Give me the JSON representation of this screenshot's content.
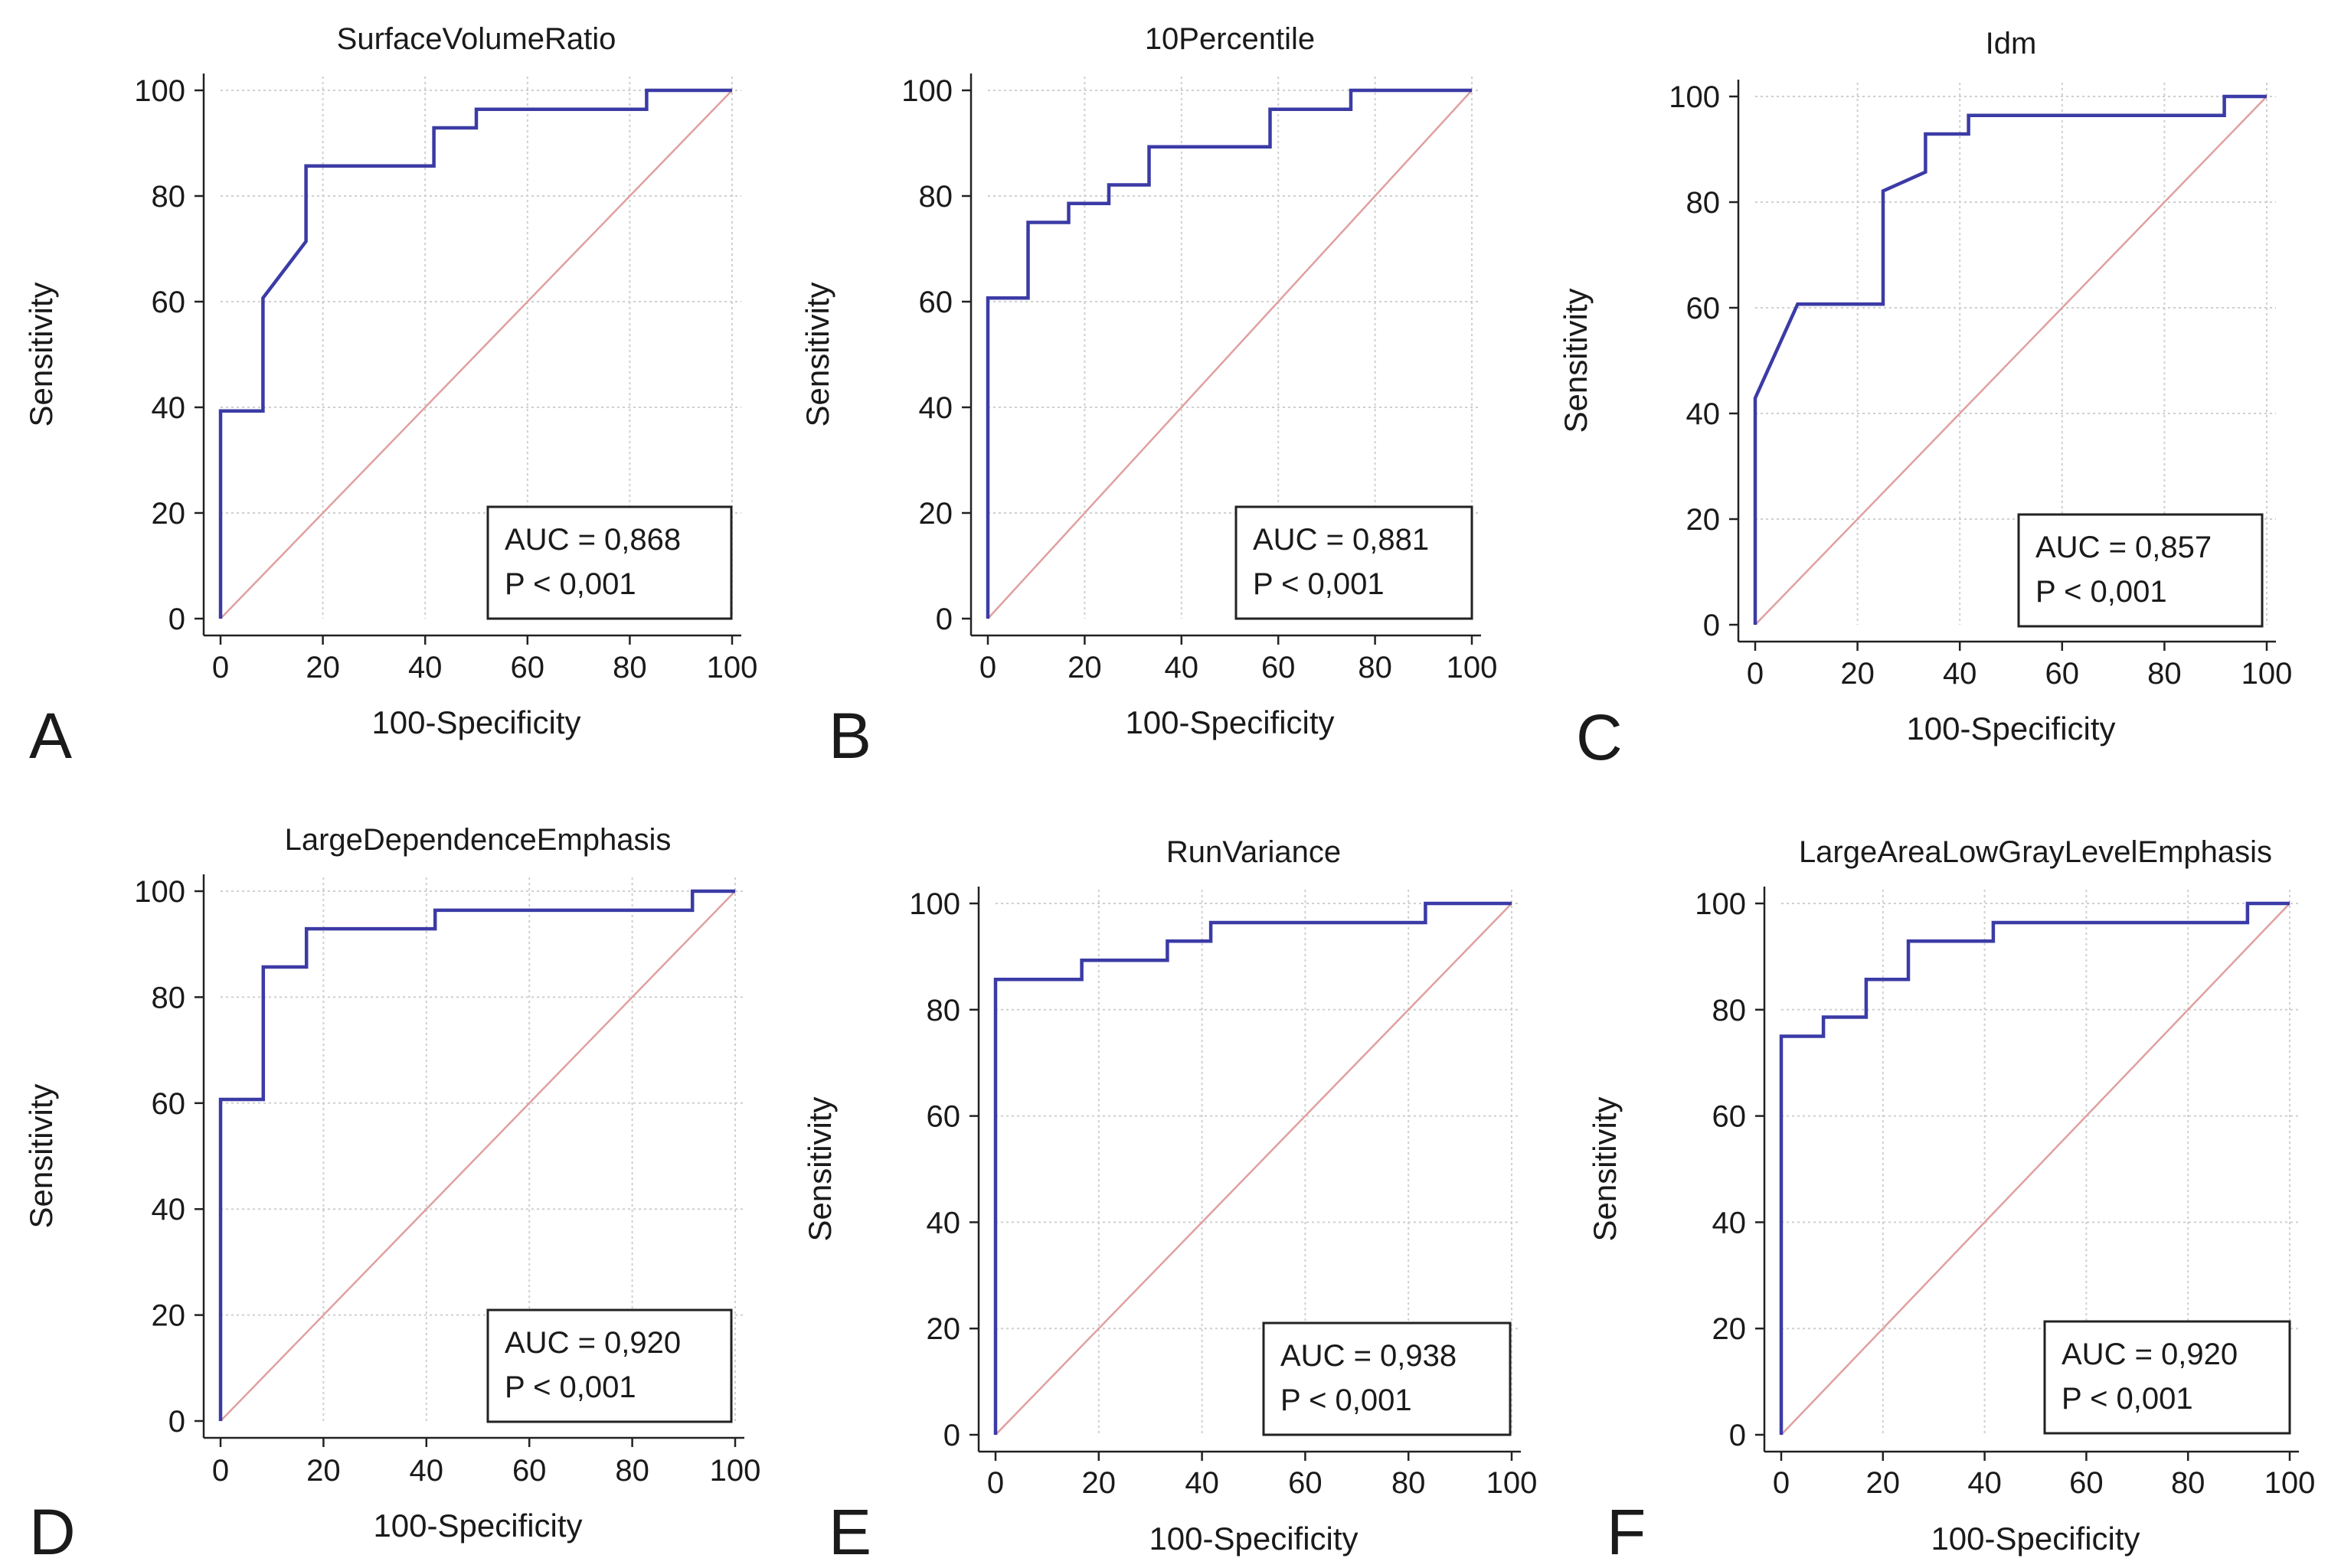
{
  "chart_data": [
    {
      "panel": "A",
      "type": "line",
      "title": "SurfaceVolumeRatio",
      "xlabel": "100-Specificity",
      "ylabel": "Sensitivity",
      "xlim": [
        0,
        100
      ],
      "ylim": [
        0,
        100
      ],
      "xticks": [
        "0",
        "20",
        "40",
        "60",
        "80",
        "100"
      ],
      "yticks": [
        "0",
        "20",
        "40",
        "60",
        "80",
        "100"
      ],
      "grid": true,
      "auc_text": "AUC = 0,868",
      "p_text": "P < 0,001",
      "legend_position": "bottom-right",
      "series": [
        {
          "name": "ROC",
          "x": [
            0,
            0,
            8.3,
            8.3,
            16.7,
            16.7,
            41.7,
            41.7,
            50,
            50,
            83.3,
            83.3,
            100
          ],
          "y": [
            0,
            39.3,
            39.3,
            60.7,
            71.4,
            85.7,
            85.7,
            92.9,
            92.9,
            96.4,
            96.4,
            100,
            100
          ]
        },
        {
          "name": "Reference",
          "x": [
            0,
            100
          ],
          "y": [
            0,
            100
          ]
        }
      ]
    },
    {
      "panel": "B",
      "type": "line",
      "title": "10Percentile",
      "xlabel": "100-Specificity",
      "ylabel": "Sensitivity",
      "xlim": [
        0,
        100
      ],
      "ylim": [
        0,
        100
      ],
      "xticks": [
        "0",
        "20",
        "40",
        "60",
        "80",
        "100"
      ],
      "yticks": [
        "0",
        "20",
        "40",
        "60",
        "80",
        "100"
      ],
      "grid": true,
      "auc_text": "AUC = 0,881",
      "p_text": "P < 0,001",
      "legend_position": "bottom-right",
      "series": [
        {
          "name": "ROC",
          "x": [
            0,
            0,
            8.3,
            8.3,
            16.7,
            16.7,
            25,
            25,
            33.3,
            33.3,
            58.3,
            58.3,
            75,
            75,
            100
          ],
          "y": [
            0,
            60.7,
            60.7,
            75,
            75,
            78.6,
            78.6,
            82.1,
            82.1,
            89.3,
            89.3,
            96.4,
            96.4,
            100,
            100
          ]
        },
        {
          "name": "Reference",
          "x": [
            0,
            100
          ],
          "y": [
            0,
            100
          ]
        }
      ]
    },
    {
      "panel": "C",
      "type": "line",
      "title": "Idm",
      "xlabel": "100-Specificity",
      "ylabel": "Sensitivity",
      "xlim": [
        0,
        100
      ],
      "ylim": [
        0,
        100
      ],
      "xticks": [
        "0",
        "20",
        "40",
        "60",
        "80",
        "100"
      ],
      "yticks": [
        "0",
        "20",
        "40",
        "60",
        "80",
        "100"
      ],
      "grid": true,
      "auc_text": "AUC = 0,857",
      "p_text": "P < 0,001",
      "legend_position": "bottom-right",
      "series": [
        {
          "name": "ROC",
          "x": [
            0,
            0,
            8.3,
            25,
            25,
            33.3,
            33.3,
            41.7,
            41.7,
            91.7,
            91.7,
            100
          ],
          "y": [
            0,
            42.9,
            60.7,
            60.7,
            82.1,
            85.7,
            92.9,
            92.9,
            96.4,
            96.4,
            100,
            100
          ]
        },
        {
          "name": "Reference",
          "x": [
            0,
            100
          ],
          "y": [
            0,
            100
          ]
        }
      ]
    },
    {
      "panel": "D",
      "type": "line",
      "title": "LargeDependenceEmphasis",
      "xlabel": "100-Specificity",
      "ylabel": "Sensitivity",
      "xlim": [
        0,
        100
      ],
      "ylim": [
        0,
        100
      ],
      "xticks": [
        "0",
        "20",
        "40",
        "60",
        "80",
        "100"
      ],
      "yticks": [
        "0",
        "20",
        "40",
        "60",
        "80",
        "100"
      ],
      "grid": true,
      "auc_text": "AUC = 0,920",
      "p_text": "P < 0,001",
      "legend_position": "bottom-right",
      "series": [
        {
          "name": "ROC",
          "x": [
            0,
            0,
            8.3,
            8.3,
            16.7,
            16.7,
            41.7,
            41.7,
            91.7,
            91.7,
            100
          ],
          "y": [
            0,
            60.7,
            60.7,
            85.7,
            85.7,
            92.9,
            92.9,
            96.4,
            96.4,
            100,
            100
          ]
        },
        {
          "name": "Reference",
          "x": [
            0,
            100
          ],
          "y": [
            0,
            100
          ]
        }
      ]
    },
    {
      "panel": "E",
      "type": "line",
      "title": "RunVariance",
      "xlabel": "100-Specificity",
      "ylabel": "Sensitivity",
      "xlim": [
        0,
        100
      ],
      "ylim": [
        0,
        100
      ],
      "xticks": [
        "0",
        "20",
        "40",
        "60",
        "80",
        "100"
      ],
      "yticks": [
        "0",
        "20",
        "40",
        "60",
        "80",
        "100"
      ],
      "grid": true,
      "auc_text": "AUC = 0,938",
      "p_text": "P < 0,001",
      "legend_position": "bottom-right",
      "series": [
        {
          "name": "ROC",
          "x": [
            0,
            0,
            16.7,
            16.7,
            33.3,
            33.3,
            41.7,
            41.7,
            83.3,
            83.3,
            100
          ],
          "y": [
            0,
            85.7,
            85.7,
            89.3,
            89.3,
            92.9,
            92.9,
            96.4,
            96.4,
            100,
            100
          ]
        },
        {
          "name": "Reference",
          "x": [
            0,
            100
          ],
          "y": [
            0,
            100
          ]
        }
      ]
    },
    {
      "panel": "F",
      "type": "line",
      "title": "LargeAreaLowGrayLevelEmphasis",
      "xlabel": "100-Specificity",
      "ylabel": "Sensitivity",
      "xlim": [
        0,
        100
      ],
      "ylim": [
        0,
        100
      ],
      "xticks": [
        "0",
        "20",
        "40",
        "60",
        "80",
        "100"
      ],
      "yticks": [
        "0",
        "20",
        "40",
        "60",
        "80",
        "100"
      ],
      "grid": true,
      "auc_text": "AUC = 0,920",
      "p_text": "P < 0,001",
      "legend_position": "bottom-right",
      "series": [
        {
          "name": "ROC",
          "x": [
            0,
            0,
            8.3,
            8.3,
            16.7,
            16.7,
            25,
            25,
            41.7,
            41.7,
            91.7,
            91.7,
            100
          ],
          "y": [
            0,
            75,
            75,
            78.6,
            78.6,
            85.7,
            85.7,
            92.9,
            92.9,
            96.4,
            96.4,
            100,
            100
          ]
        },
        {
          "name": "Reference",
          "x": [
            0,
            100
          ],
          "y": [
            0,
            100
          ]
        }
      ]
    }
  ],
  "colors": {
    "roc": "#3b3ba6",
    "reference": "#e0a0a0",
    "grid": "#cfcfcf",
    "axis": "#222222"
  }
}
